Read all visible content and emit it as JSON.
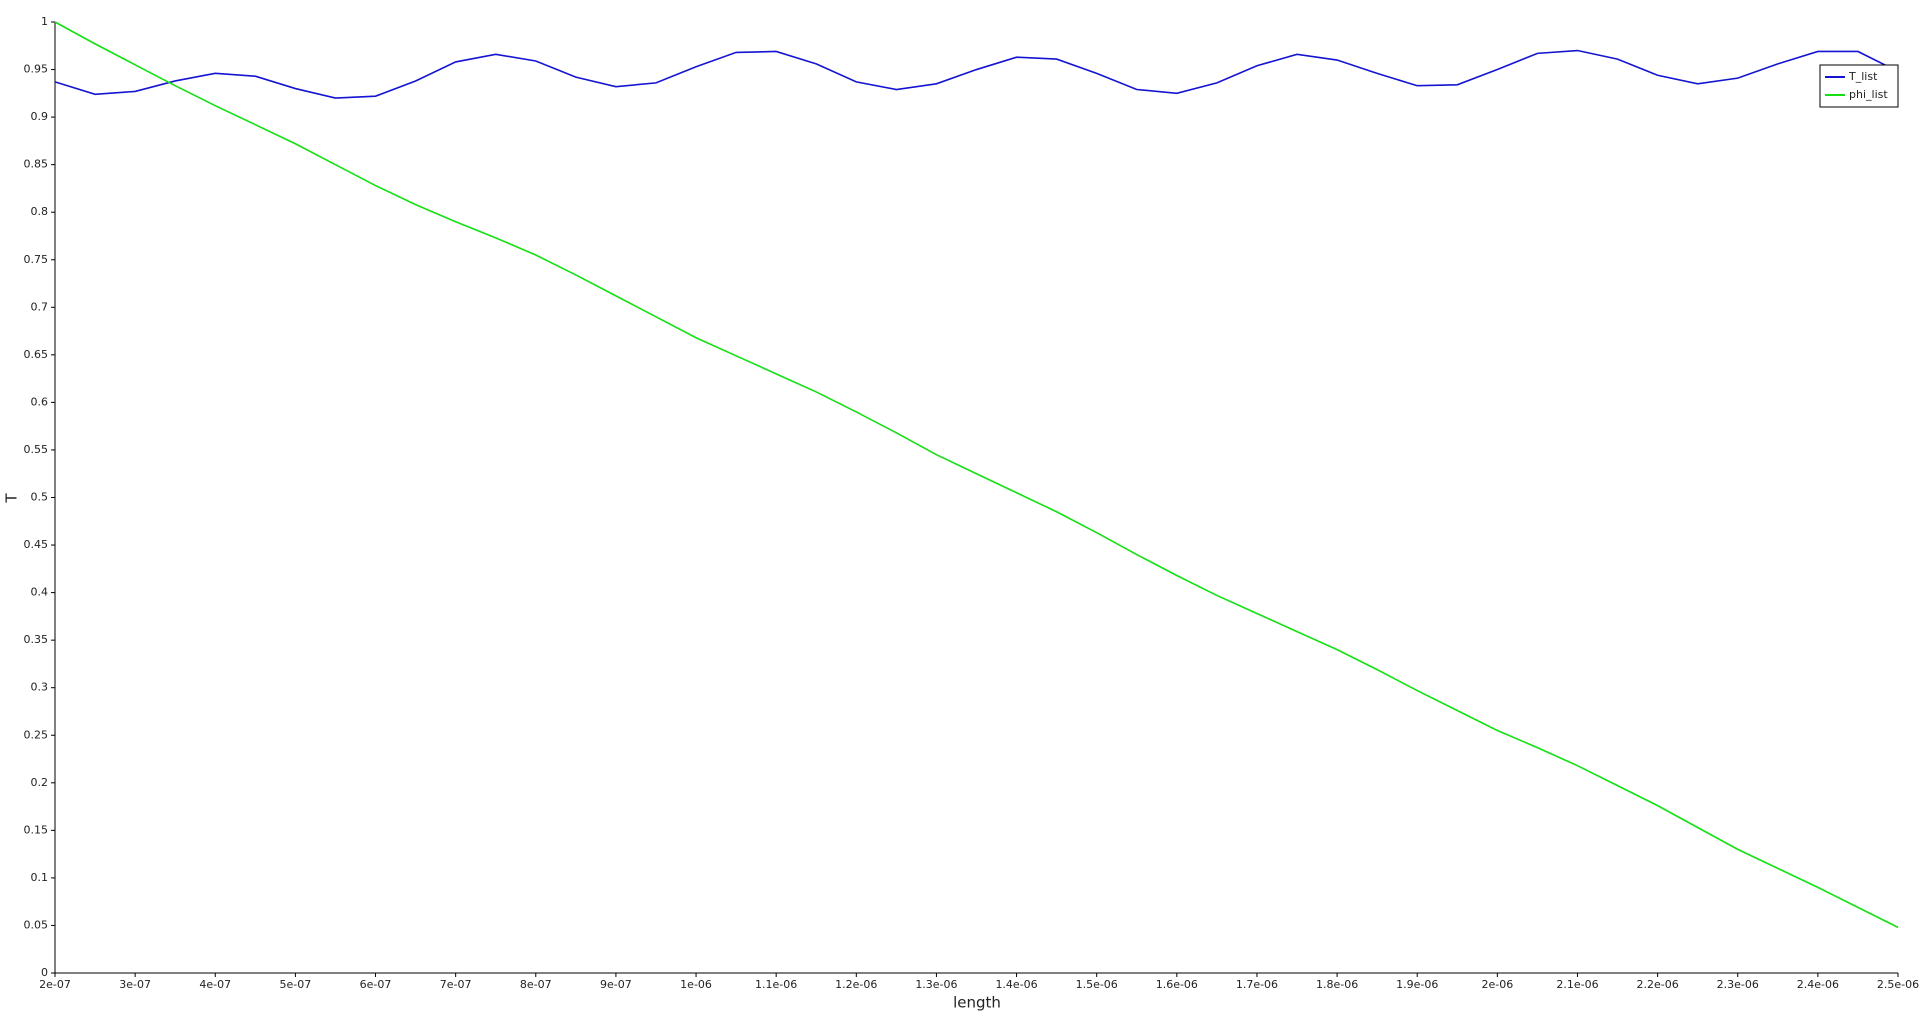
{
  "chart_data": {
    "type": "line",
    "xlabel": "length",
    "ylabel": "T",
    "x": [
      2e-07,
      2.5e-07,
      3e-07,
      3.5e-07,
      4e-07,
      4.5e-07,
      5e-07,
      5.5e-07,
      6e-07,
      6.5e-07,
      7e-07,
      7.5e-07,
      8e-07,
      8.5e-07,
      9e-07,
      9.5e-07,
      1e-06,
      1.05e-06,
      1.1e-06,
      1.15e-06,
      1.2e-06,
      1.25e-06,
      1.3e-06,
      1.35e-06,
      1.4e-06,
      1.45e-06,
      1.5e-06,
      1.55e-06,
      1.6e-06,
      1.65e-06,
      1.7e-06,
      1.75e-06,
      1.8e-06,
      1.85e-06,
      1.9e-06,
      1.95e-06,
      2e-06,
      2.05e-06,
      2.1e-06,
      2.15e-06,
      2.2e-06,
      2.25e-06,
      2.3e-06,
      2.35e-06,
      2.4e-06,
      2.45e-06,
      2.5e-06
    ],
    "series": [
      {
        "name": "T_list",
        "color": "#1414d2",
        "values": [
          0.937,
          0.924,
          0.927,
          0.938,
          0.946,
          0.943,
          0.93,
          0.92,
          0.922,
          0.938,
          0.958,
          0.966,
          0.959,
          0.942,
          0.932,
          0.936,
          0.953,
          0.968,
          0.969,
          0.956,
          0.937,
          0.929,
          0.935,
          0.95,
          0.963,
          0.961,
          0.946,
          0.929,
          0.925,
          0.936,
          0.954,
          0.966,
          0.96,
          0.946,
          0.933,
          0.934,
          0.95,
          0.967,
          0.97,
          0.961,
          0.944,
          0.935,
          0.941,
          0.956,
          0.969,
          0.969,
          0.948
        ]
      },
      {
        "name": "phi_list",
        "color": "#14e014",
        "values": [
          1.0,
          0.977,
          0.955,
          0.933,
          0.912,
          0.892,
          0.872,
          0.85,
          0.828,
          0.808,
          0.79,
          0.773,
          0.755,
          0.734,
          0.712,
          0.69,
          0.668,
          0.649,
          0.63,
          0.611,
          0.59,
          0.568,
          0.545,
          0.525,
          0.505,
          0.485,
          0.463,
          0.44,
          0.418,
          0.397,
          0.378,
          0.359,
          0.34,
          0.319,
          0.297,
          0.276,
          0.255,
          0.237,
          0.218,
          0.197,
          0.176,
          0.153,
          0.13,
          0.11,
          0.09,
          0.069,
          0.048
        ]
      }
    ],
    "xlim": [
      2e-07,
      2.5e-06
    ],
    "xticks": [
      {
        "value": 2e-07,
        "label": "2e-07"
      },
      {
        "value": 3e-07,
        "label": "3e-07"
      },
      {
        "value": 4e-07,
        "label": "4e-07"
      },
      {
        "value": 5e-07,
        "label": "5e-07"
      },
      {
        "value": 6e-07,
        "label": "6e-07"
      },
      {
        "value": 7e-07,
        "label": "7e-07"
      },
      {
        "value": 8e-07,
        "label": "8e-07"
      },
      {
        "value": 9e-07,
        "label": "9e-07"
      },
      {
        "value": 1e-06,
        "label": "1e-06"
      },
      {
        "value": 1.1e-06,
        "label": "1.1e-06"
      },
      {
        "value": 1.2e-06,
        "label": "1.2e-06"
      },
      {
        "value": 1.3e-06,
        "label": "1.3e-06"
      },
      {
        "value": 1.4e-06,
        "label": "1.4e-06"
      },
      {
        "value": 1.5e-06,
        "label": "1.5e-06"
      },
      {
        "value": 1.6e-06,
        "label": "1.6e-06"
      },
      {
        "value": 1.7e-06,
        "label": "1.7e-06"
      },
      {
        "value": 1.8e-06,
        "label": "1.8e-06"
      },
      {
        "value": 1.9e-06,
        "label": "1.9e-06"
      },
      {
        "value": 2e-06,
        "label": "2e-06"
      },
      {
        "value": 2.1e-06,
        "label": "2.1e-06"
      },
      {
        "value": 2.2e-06,
        "label": "2.2e-06"
      },
      {
        "value": 2.3e-06,
        "label": "2.3e-06"
      },
      {
        "value": 2.4e-06,
        "label": "2.4e-06"
      },
      {
        "value": 2.5e-06,
        "label": "2.5e-06"
      }
    ],
    "ylim": [
      0,
      1
    ],
    "yticks": [
      0,
      0.05,
      0.1,
      0.15,
      0.2,
      0.25,
      0.3,
      0.35,
      0.4,
      0.45,
      0.5,
      0.55,
      0.6,
      0.65,
      0.7,
      0.75,
      0.8,
      0.85,
      0.9,
      0.95,
      1
    ],
    "legend": "top-right"
  }
}
